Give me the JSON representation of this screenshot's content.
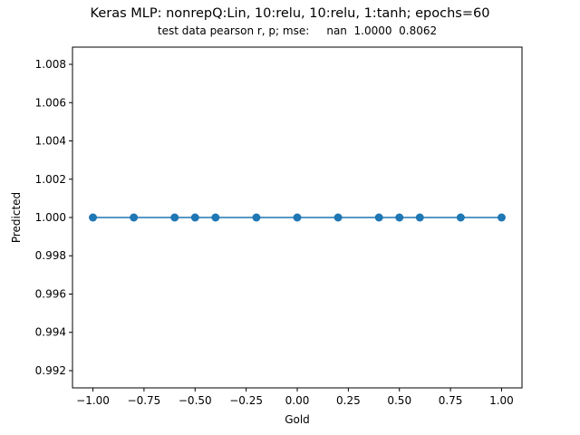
{
  "chart_data": {
    "type": "scatter",
    "title": "Keras MLP: nonrepQ:Lin, 10:relu, 10:relu, 1:tanh; epochs=60",
    "subtitle": "test data pearson r, p; mse:     nan  1.0000  0.8062",
    "xlabel": "Gold",
    "ylabel": "Predicted",
    "xlim": [
      -1.1,
      1.1
    ],
    "ylim": [
      0.9911,
      1.0089
    ],
    "xticks": [
      -1.0,
      -0.75,
      -0.5,
      -0.25,
      0.0,
      0.25,
      0.5,
      0.75,
      1.0
    ],
    "xtick_labels": [
      "−1.00",
      "−0.75",
      "−0.50",
      "−0.25",
      "0.00",
      "0.25",
      "0.50",
      "0.75",
      "1.00"
    ],
    "yticks": [
      0.992,
      0.994,
      0.996,
      0.998,
      1.0,
      1.002,
      1.004,
      1.006,
      1.008
    ],
    "ytick_labels": [
      "0.992",
      "0.994",
      "0.996",
      "0.998",
      "1.000",
      "1.002",
      "1.004",
      "1.006",
      "1.008"
    ],
    "grid": false,
    "color": "#1f77b4",
    "points": {
      "x": [
        -1.0,
        -0.8,
        -0.6,
        -0.5,
        -0.4,
        -0.2,
        0.0,
        0.2,
        0.4,
        0.5,
        0.6,
        0.8,
        1.0
      ],
      "y": [
        1.0,
        1.0,
        1.0,
        1.0,
        1.0,
        1.0,
        1.0,
        1.0,
        1.0,
        1.0,
        1.0,
        1.0,
        1.0
      ]
    },
    "fit_line": {
      "x": [
        -1.0,
        1.0
      ],
      "y": [
        1.0,
        1.0
      ]
    }
  }
}
